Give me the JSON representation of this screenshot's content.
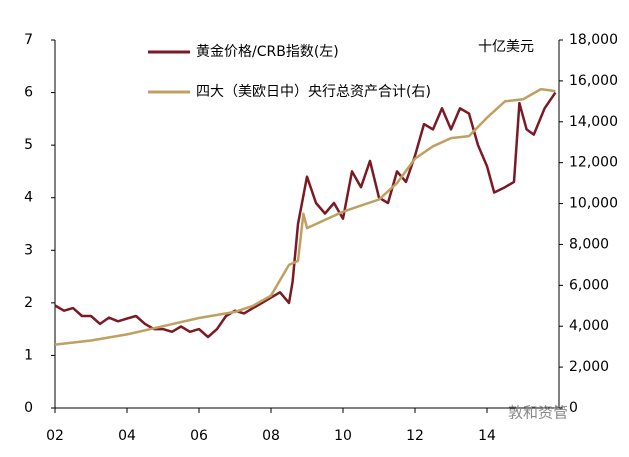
{
  "chart_data": {
    "type": "line",
    "series": [
      {
        "name": "黄金价格/CRB指数(左)",
        "color": "#7b1a24",
        "axis": "y",
        "x": [
          2002.0,
          2002.25,
          2002.5,
          2002.75,
          2003.0,
          2003.25,
          2003.5,
          2003.75,
          2004.0,
          2004.25,
          2004.5,
          2004.75,
          2005.0,
          2005.25,
          2005.5,
          2005.75,
          2006.0,
          2006.25,
          2006.5,
          2006.75,
          2007.0,
          2007.25,
          2007.5,
          2007.75,
          2008.0,
          2008.25,
          2008.5,
          2008.6,
          2008.75,
          2009.0,
          2009.25,
          2009.5,
          2009.75,
          2010.0,
          2010.25,
          2010.5,
          2010.75,
          2011.0,
          2011.25,
          2011.5,
          2011.75,
          2012.0,
          2012.25,
          2012.5,
          2012.75,
          2013.0,
          2013.25,
          2013.5,
          2013.75,
          2014.0,
          2014.2,
          2014.5,
          2014.75,
          2014.9,
          2015.1,
          2015.3,
          2015.6,
          2015.9
        ],
        "values": [
          1.95,
          1.85,
          1.9,
          1.75,
          1.75,
          1.6,
          1.72,
          1.65,
          1.7,
          1.75,
          1.6,
          1.5,
          1.5,
          1.45,
          1.55,
          1.45,
          1.5,
          1.35,
          1.5,
          1.75,
          1.85,
          1.8,
          1.9,
          2.0,
          2.1,
          2.2,
          2.0,
          2.4,
          3.5,
          4.4,
          3.9,
          3.7,
          3.9,
          3.6,
          4.5,
          4.2,
          4.7,
          4.0,
          3.9,
          4.5,
          4.3,
          4.8,
          5.4,
          5.3,
          5.7,
          5.3,
          5.7,
          5.6,
          5.0,
          4.6,
          4.1,
          4.2,
          4.3,
          5.8,
          5.3,
          5.2,
          5.7,
          6.0
        ]
      },
      {
        "name": "四大（美欧日中）央行总资产合计(右)",
        "color": "#bfa060",
        "axis": "y2",
        "x": [
          2002.0,
          2003.0,
          2004.0,
          2005.0,
          2006.0,
          2007.0,
          2007.5,
          2008.0,
          2008.5,
          2008.75,
          2008.9,
          2009.0,
          2009.5,
          2010.0,
          2010.5,
          2011.0,
          2011.5,
          2012.0,
          2012.5,
          2013.0,
          2013.5,
          2014.0,
          2014.5,
          2015.0,
          2015.5,
          2015.9
        ],
        "values": [
          3100,
          3300,
          3600,
          4000,
          4400,
          4700,
          5000,
          5500,
          7000,
          7200,
          9500,
          8800,
          9200,
          9600,
          9900,
          10200,
          11000,
          12200,
          12800,
          13200,
          13300,
          14200,
          15000,
          15100,
          15600,
          15500
        ]
      }
    ],
    "xlim": [
      2002,
      2016
    ],
    "xticks": [
      {
        "value": 2002,
        "label": "02"
      },
      {
        "value": 2004,
        "label": "04"
      },
      {
        "value": 2006,
        "label": "06"
      },
      {
        "value": 2008,
        "label": "08"
      },
      {
        "value": 2010,
        "label": "10"
      },
      {
        "value": 2012,
        "label": "12"
      },
      {
        "value": 2014,
        "label": "14"
      }
    ],
    "ylim": [
      0,
      7
    ],
    "yticks": [
      0,
      1,
      2,
      3,
      4,
      5,
      6,
      7
    ],
    "y2lim": [
      0,
      18000
    ],
    "y2ticks": [
      0,
      {
        "value": 2000,
        "label": "2,000"
      },
      {
        "value": 4000,
        "label": "4,000"
      },
      {
        "value": 6000,
        "label": "6,000"
      },
      {
        "value": 8000,
        "label": "8,000"
      },
      {
        "value": 10000,
        "label": "10,000"
      },
      {
        "value": 12000,
        "label": "12,000"
      },
      {
        "value": 14000,
        "label": "14,000"
      },
      {
        "value": 16000,
        "label": "16,000"
      },
      {
        "value": 18000,
        "label": "18,000"
      }
    ],
    "y2_label": "十亿美元",
    "annotation": "敦和资管",
    "grid": false
  }
}
